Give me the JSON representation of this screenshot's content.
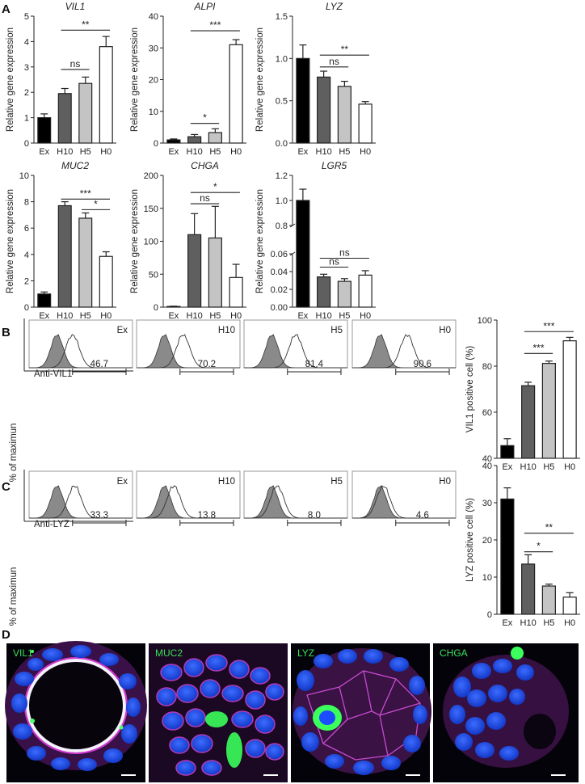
{
  "panel_labels": {
    "a": "A",
    "b": "B",
    "c": "C",
    "d": "D"
  },
  "common": {
    "ylabel": "Relative gene expression",
    "categories": [
      "Ex",
      "H10",
      "H5",
      "H0"
    ]
  },
  "bar_colors": [
    "#000000",
    "#5f5f5f",
    "#c4c4c4",
    "#ffffff"
  ],
  "chart_data": [
    {
      "id": "vil1",
      "type": "bar",
      "title": "VIL1",
      "ylabel": "Relative gene expression",
      "categories": [
        "Ex",
        "H10",
        "H5",
        "H0"
      ],
      "values": [
        1.0,
        1.95,
        2.35,
        3.8
      ],
      "errors": [
        0.15,
        0.2,
        0.25,
        0.4
      ],
      "ylim": [
        0,
        5
      ],
      "yticks": [
        "0",
        "1",
        "2",
        "3",
        "4",
        "5"
      ],
      "ytick_values": [
        0,
        1,
        2,
        3,
        4,
        5
      ],
      "significance": [
        {
          "from": 1,
          "to": 2,
          "label": "ns",
          "y": 2.9
        },
        {
          "from": 1,
          "to": 3,
          "label": "**",
          "y": 4.45
        }
      ]
    },
    {
      "id": "alpi",
      "type": "bar",
      "title": "ALPI",
      "ylabel": "Relative gene expression",
      "categories": [
        "Ex",
        "H10",
        "H5",
        "H0"
      ],
      "values": [
        1.0,
        2.0,
        3.3,
        31.0
      ],
      "errors": [
        0.3,
        0.7,
        1.2,
        1.6
      ],
      "ylim": [
        0,
        40
      ],
      "yticks": [
        "0",
        "10",
        "20",
        "30",
        "40"
      ],
      "ytick_values": [
        0,
        10,
        20,
        30,
        40
      ],
      "significance": [
        {
          "from": 1,
          "to": 2,
          "label": "*",
          "y": 6.2
        },
        {
          "from": 1,
          "to": 3,
          "label": "***",
          "y": 35.4
        }
      ]
    },
    {
      "id": "lyz",
      "type": "bar",
      "title": "LYZ",
      "ylabel": "Relative gene expression",
      "categories": [
        "Ex",
        "H10",
        "H5",
        "H0"
      ],
      "values": [
        1.0,
        0.78,
        0.67,
        0.46
      ],
      "errors": [
        0.16,
        0.07,
        0.06,
        0.03
      ],
      "ylim": [
        0,
        1.5
      ],
      "yticks": [
        "0.0",
        "0.5",
        "1.0",
        "1.5"
      ],
      "ytick_values": [
        0,
        0.5,
        1.0,
        1.5
      ],
      "significance": [
        {
          "from": 1,
          "to": 2,
          "label": "ns",
          "y": 0.9
        },
        {
          "from": 1,
          "to": 3,
          "label": "**",
          "y": 1.04
        }
      ]
    },
    {
      "id": "muc2",
      "type": "bar",
      "title": "MUC2",
      "ylabel": "Relative gene expression",
      "categories": [
        "Ex",
        "H10",
        "H5",
        "H0"
      ],
      "values": [
        1.0,
        7.7,
        6.75,
        3.85
      ],
      "errors": [
        0.15,
        0.3,
        0.4,
        0.35
      ],
      "ylim": [
        0,
        10
      ],
      "yticks": [
        "0",
        "2",
        "4",
        "6",
        "8",
        "10"
      ],
      "ytick_values": [
        0,
        2,
        4,
        6,
        8,
        10
      ],
      "significance": [
        {
          "from": 1,
          "to": 3,
          "label": "***",
          "y": 8.2
        },
        {
          "from": 2,
          "to": 3,
          "label": "*",
          "y": 7.4
        }
      ]
    },
    {
      "id": "chga",
      "type": "bar",
      "title": "CHGA",
      "ylabel": "Relative gene expression",
      "categories": [
        "Ex",
        "H10",
        "H5",
        "H0"
      ],
      "values": [
        1.0,
        110,
        105,
        45
      ],
      "errors": [
        0.5,
        32,
        48,
        20
      ],
      "ylim": [
        0,
        200
      ],
      "yticks": [
        "0",
        "50",
        "100",
        "150",
        "200"
      ],
      "ytick_values": [
        0,
        50,
        100,
        150,
        200
      ],
      "significance": [
        {
          "from": 1,
          "to": 2,
          "label": "ns",
          "y": 157
        },
        {
          "from": 1,
          "to": 3,
          "label": "*",
          "y": 174
        }
      ]
    },
    {
      "id": "lgr5",
      "type": "bar",
      "title": "LGR5",
      "ylabel": "Relative gene expression",
      "categories": [
        "Ex",
        "H10",
        "H5",
        "H0"
      ],
      "values": [
        1.0,
        0.034,
        0.029,
        0.036
      ],
      "errors": [
        0.09,
        0.003,
        0.003,
        0.005
      ],
      "broken_axis": true,
      "yticks": [
        "0.00",
        "0.02",
        "0.04",
        "0.06",
        "0.8",
        "1.0",
        "1.2"
      ],
      "significance": [
        {
          "from": 1,
          "to": 2,
          "label": "ns",
          "y": 0.045
        },
        {
          "from": 1,
          "to": 3,
          "label": "ns",
          "y": 0.055
        }
      ]
    },
    {
      "id": "vil1_pos",
      "type": "bar",
      "title": "",
      "ylabel": "VIL1 positive cell (%)",
      "categories": [
        "Ex",
        "H10",
        "H5",
        "H0"
      ],
      "values": [
        45.5,
        71.5,
        81.2,
        91.0
      ],
      "errors": [
        3.0,
        1.5,
        1.0,
        1.5
      ],
      "ylim": [
        40,
        100
      ],
      "yticks": [
        "40",
        "60",
        "80",
        "100"
      ],
      "ytick_values": [
        40,
        60,
        80,
        100
      ],
      "significance": [
        {
          "from": 1,
          "to": 2,
          "label": "***",
          "y": 85.5
        },
        {
          "from": 1,
          "to": 3,
          "label": "***",
          "y": 95
        }
      ]
    },
    {
      "id": "lyz_pos",
      "type": "bar",
      "title": "",
      "ylabel": "LYZ positive cell (%)",
      "categories": [
        "Ex",
        "H10",
        "H5",
        "H0"
      ],
      "values": [
        31.0,
        13.5,
        7.6,
        4.6
      ],
      "errors": [
        3.0,
        2.5,
        0.5,
        1.2
      ],
      "ylim": [
        0,
        40
      ],
      "yticks": [
        "0",
        "10",
        "20",
        "30",
        "40"
      ],
      "ytick_values": [
        0,
        10,
        20,
        30,
        40
      ],
      "significance": [
        {
          "from": 1,
          "to": 2,
          "label": "*",
          "y": 16.8
        },
        {
          "from": 1,
          "to": 3,
          "label": "**",
          "y": 21.8
        }
      ]
    }
  ],
  "flow": {
    "ylabel": "% of maximun",
    "b": {
      "xlabel": "Anti-VIL1",
      "samples": [
        "Ex",
        "H10",
        "H5",
        "H0"
      ],
      "gates": [
        "46.7",
        "70.2",
        "81.4",
        "90.6"
      ]
    },
    "c": {
      "xlabel": "Anti-LYZ",
      "samples": [
        "Ex",
        "H10",
        "H5",
        "H0"
      ],
      "gates": [
        "33.3",
        "13.8",
        "8.0",
        "4.6"
      ]
    }
  },
  "micrographs": [
    {
      "label": "VIL1",
      "label_color": "#39e05a"
    },
    {
      "label": "MUC2",
      "label_color": "#39e05a"
    },
    {
      "label": "LYZ",
      "label_color": "#39e05a"
    },
    {
      "label": "CHGA",
      "label_color": "#39e05a"
    }
  ]
}
